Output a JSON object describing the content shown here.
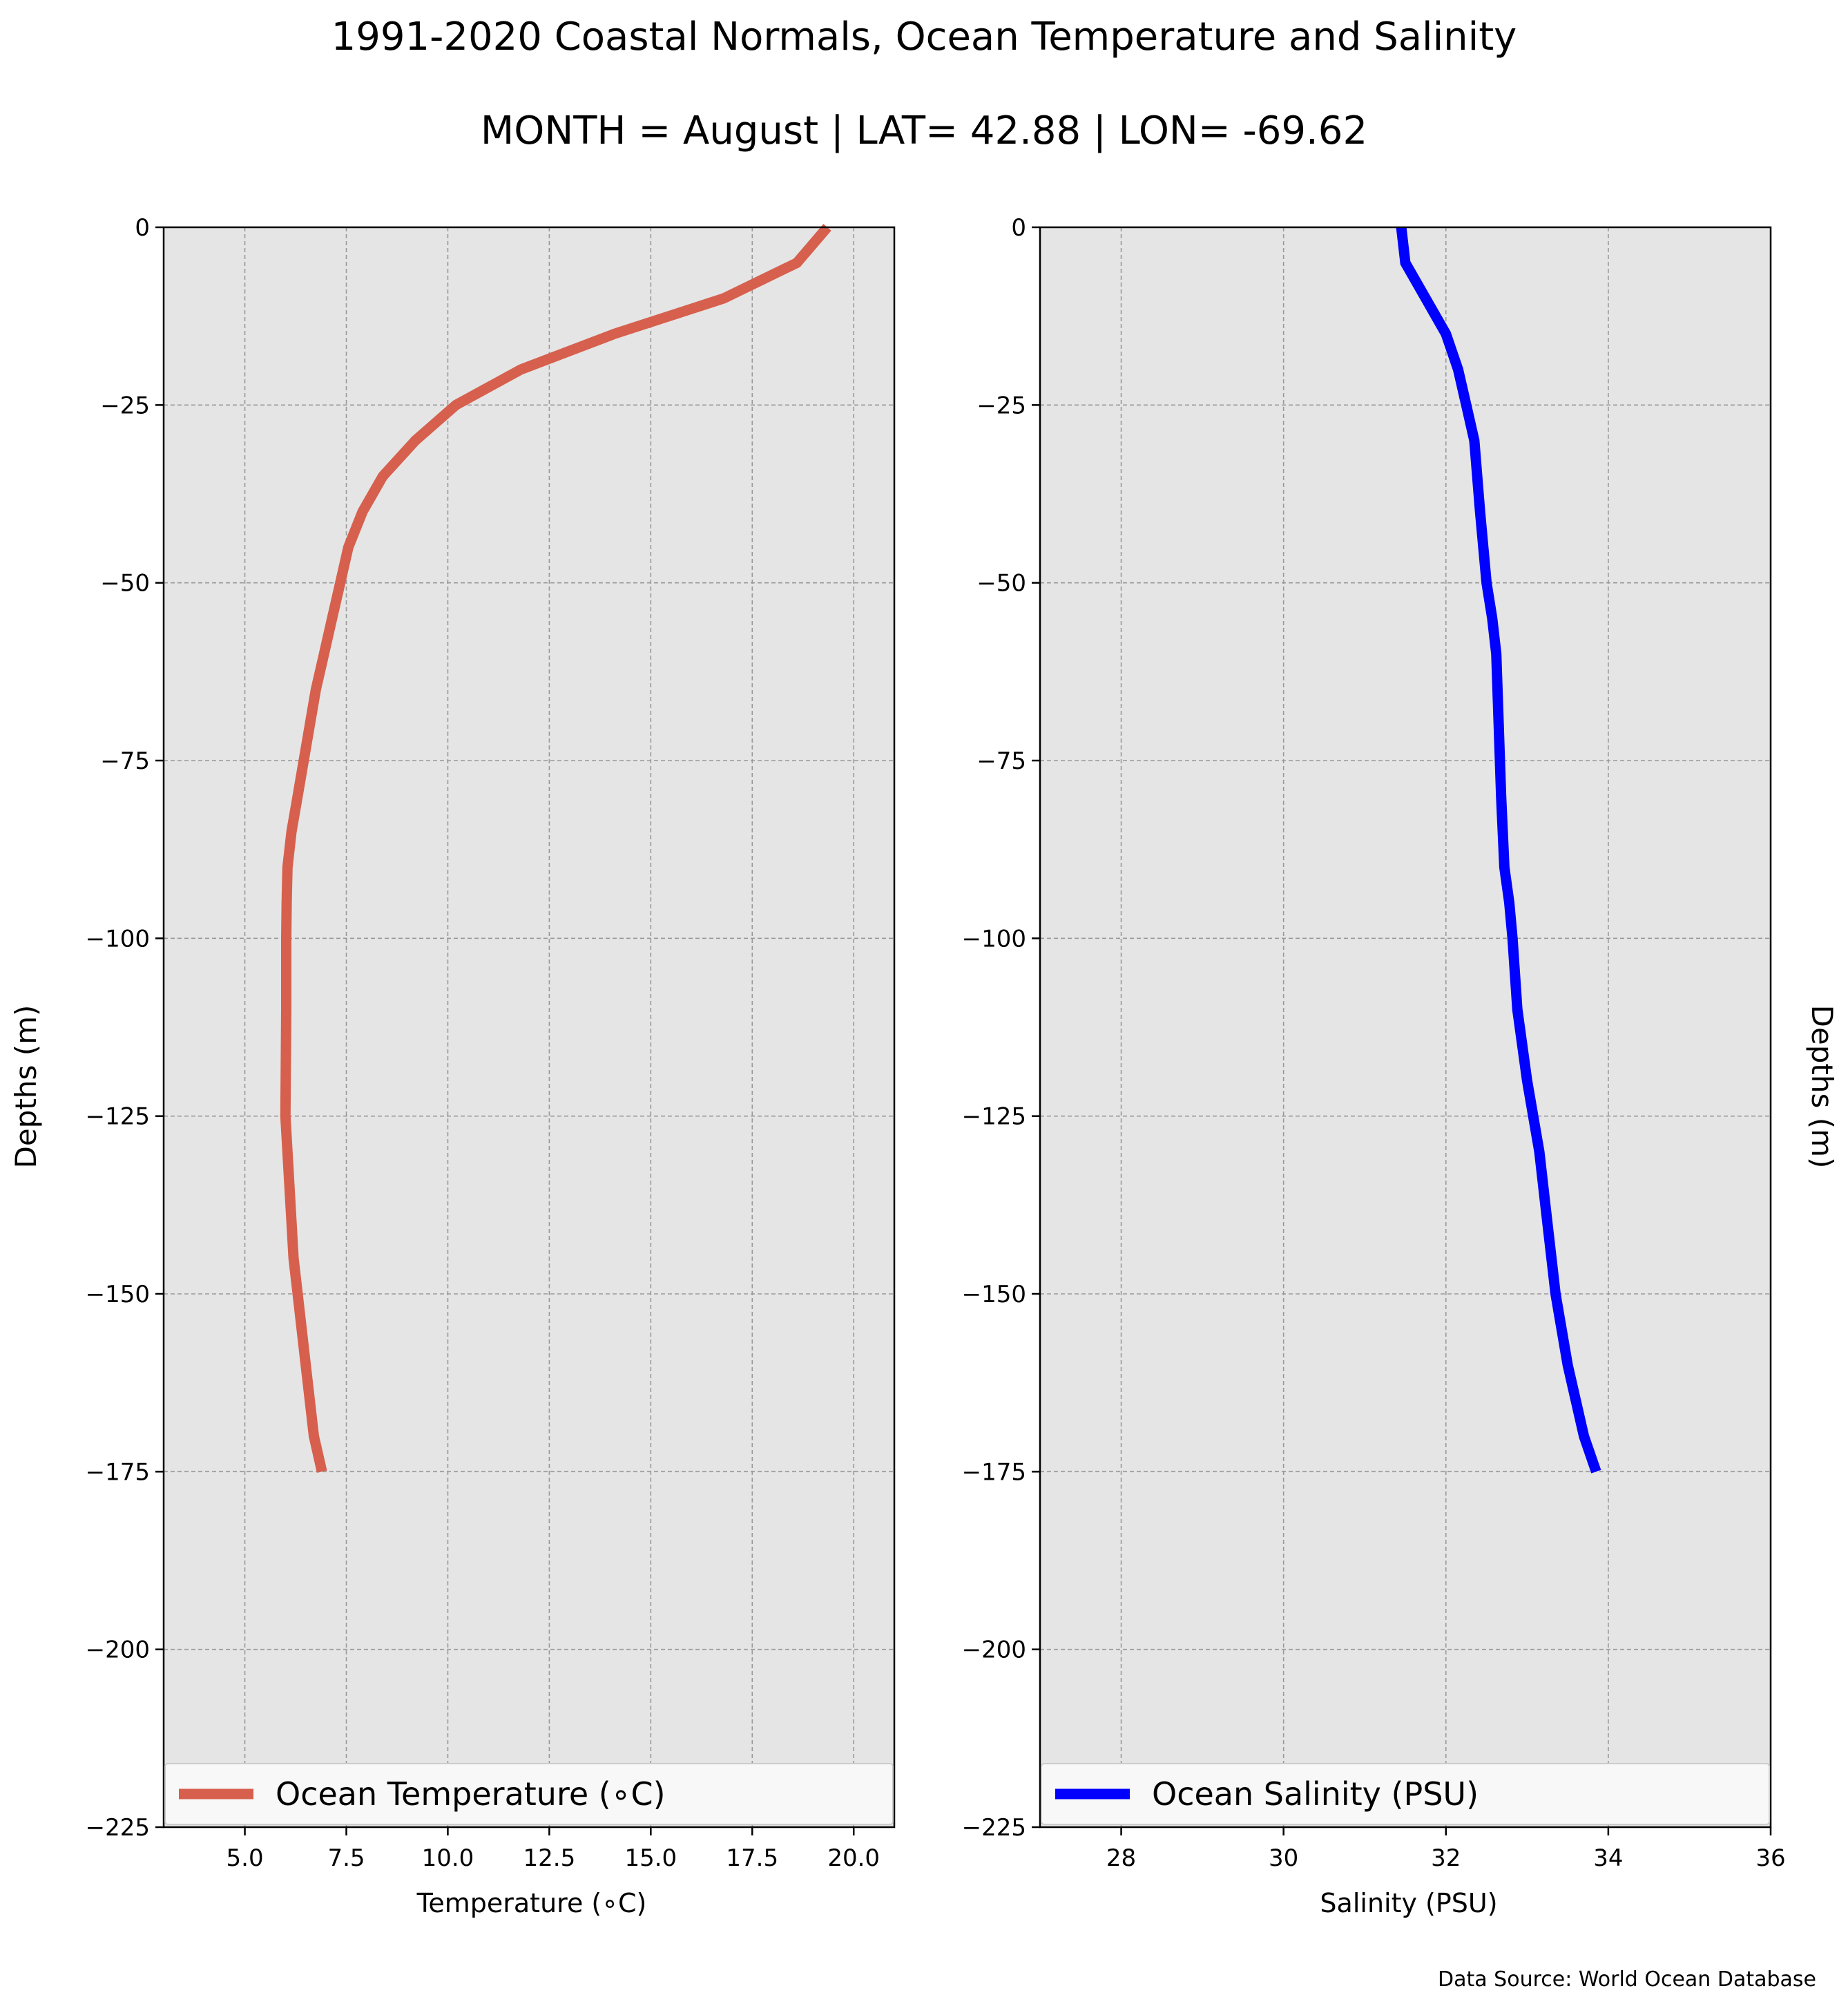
{
  "figure": {
    "title": "1991-2020 Coastal Normals, Ocean Temperature and Salinity",
    "subtitle": "MONTH = August | LAT= 42.88 | LON= -69.62",
    "source": "Data Source: World Ocean Database"
  },
  "colors": {
    "background": "#ffffff",
    "plot_background": "#e5e5e5",
    "grid": "#999999",
    "temperature": "#d6604d",
    "salinity": "#0000ff"
  },
  "chart_data": [
    {
      "type": "line",
      "title": "",
      "xlabel": "Temperature ($^\\circ$C)",
      "xlabel_display": "Temperature (∘C)",
      "ylabel": "Depths (m)",
      "xlim": [
        3.0,
        21.0
      ],
      "ylim": [
        -225,
        0
      ],
      "xticks": [
        "5.0",
        "7.5",
        "10.0",
        "12.5",
        "15.0",
        "17.5",
        "20.0"
      ],
      "xtick_values": [
        5.0,
        7.5,
        10.0,
        12.5,
        15.0,
        17.5,
        20.0
      ],
      "yticks": [
        "0",
        "−25",
        "−50",
        "−75",
        "−100",
        "−125",
        "−150",
        "−175",
        "−200",
        "−225"
      ],
      "ytick_values": [
        0,
        -25,
        -50,
        -75,
        -100,
        -125,
        -150,
        -175,
        -200,
        -225
      ],
      "grid": true,
      "legend": "lower center",
      "series": [
        {
          "name": "Ocean Temperature (∘C)",
          "color": "#d6604d",
          "x": [
            19.35,
            18.6,
            16.8,
            14.1,
            11.8,
            10.2,
            9.2,
            8.4,
            7.9,
            7.55,
            7.35,
            7.15,
            6.95,
            6.75,
            6.6,
            6.45,
            6.3,
            6.15,
            6.05,
            6.03,
            6.02,
            6.02,
            6.0,
            6.1,
            6.2,
            6.3,
            6.5,
            6.7,
            6.9
          ],
          "y": [
            0,
            -5,
            -10,
            -15,
            -20,
            -25,
            -30,
            -35,
            -40,
            -45,
            -50,
            -55,
            -60,
            -65,
            -70,
            -75,
            -80,
            -85,
            -90,
            -95,
            -100,
            -110,
            -125,
            -135,
            -145,
            -150,
            -160,
            -170,
            -175
          ]
        }
      ]
    },
    {
      "type": "line",
      "title": "",
      "xlabel": "Salinity (PSU)",
      "ylabel": "Depths (m)",
      "xlim": [
        27.0,
        36.0
      ],
      "ylim": [
        -225,
        0
      ],
      "xticks": [
        "28",
        "30",
        "32",
        "34",
        "36"
      ],
      "xtick_values": [
        28,
        30,
        32,
        34,
        36
      ],
      "yticks": [
        "0",
        "−25",
        "−50",
        "−75",
        "−100",
        "−125",
        "−150",
        "−175",
        "−200",
        "−225"
      ],
      "ytick_values": [
        0,
        -25,
        -50,
        -75,
        -100,
        -125,
        -150,
        -175,
        -200,
        -225
      ],
      "grid": true,
      "legend": "lower center",
      "series": [
        {
          "name": "Ocean Salinity (PSU)",
          "color": "#0000ff",
          "x": [
            31.45,
            31.5,
            31.75,
            32.0,
            32.15,
            32.25,
            32.35,
            32.42,
            32.5,
            32.57,
            32.62,
            32.65,
            32.68,
            32.72,
            32.78,
            32.82,
            32.88,
            33.0,
            33.15,
            33.25,
            33.35,
            33.5,
            33.7,
            33.85
          ],
          "y": [
            0,
            -5,
            -10,
            -15,
            -20,
            -25,
            -30,
            -40,
            -50,
            -55,
            -60,
            -70,
            -80,
            -90,
            -95,
            -100,
            -110,
            -120,
            -130,
            -140,
            -150,
            -160,
            -170,
            -175
          ]
        }
      ]
    }
  ]
}
